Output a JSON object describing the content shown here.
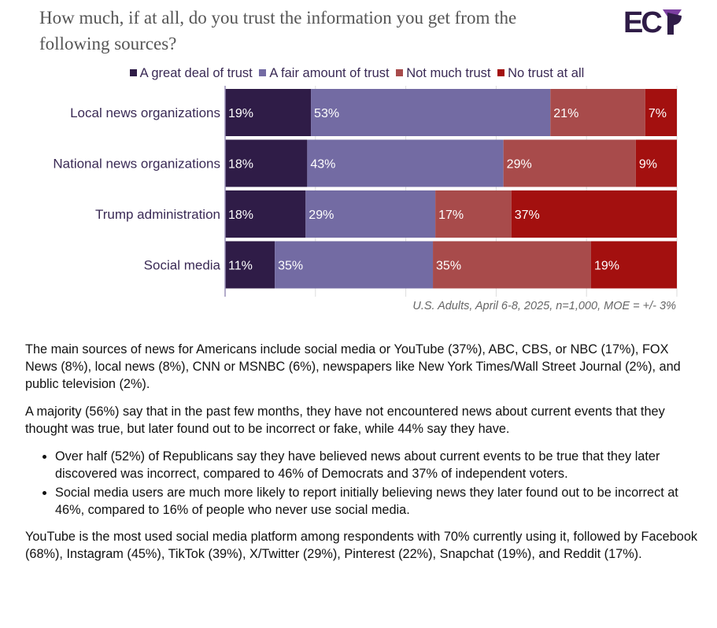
{
  "title": "How much, if at all, do you trust the information you get from the following sources?",
  "logo_text": "ECP",
  "source_note": "U.S. Adults, April 6-8, 2025, n=1,000, MOE = +/- 3%",
  "colors": {
    "great": "#2f1c47",
    "fair": "#736ba3",
    "notmuch": "#a84b4b",
    "none": "#a3100f"
  },
  "chart_data": {
    "type": "bar",
    "orientation": "horizontal-stacked",
    "title": "How much, if at all, do you trust the information you get from the following sources?",
    "legend": [
      "A great deal of trust",
      "A fair amount of trust",
      "Not much trust",
      "No trust at all"
    ],
    "legend_position": "top",
    "categories": [
      "Local news organizations",
      "National news organizations",
      "Trump administration",
      "Social media"
    ],
    "series": [
      {
        "name": "A great deal of trust",
        "values": [
          19,
          18,
          18,
          11
        ]
      },
      {
        "name": "A fair amount of trust",
        "values": [
          53,
          43,
          29,
          35
        ]
      },
      {
        "name": "Not much trust",
        "values": [
          21,
          29,
          17,
          35
        ]
      },
      {
        "name": "No trust at all",
        "values": [
          7,
          9,
          37,
          19
        ]
      }
    ],
    "xlim": [
      0,
      100
    ],
    "grid": true
  },
  "body": {
    "p1": "The main sources of news for Americans include social media or YouTube (37%), ABC, CBS, or NBC (17%), FOX News (8%), local news (8%), CNN or MSNBC (6%), newspapers like New York Times/Wall Street Journal (2%), and public television (2%).",
    "p2": "A majority (56%) say that in the past few months, they have not encountered news about current events that they thought was true, but later found out to be incorrect or fake, while 44% say they have.",
    "bullets": [
      "Over half (52%) of Republicans say they have believed news about current events to be true that they later discovered was incorrect, compared to 46% of Democrats and 37% of independent voters.",
      "Social media users are much more likely to report initially believing news they later found out to be incorrect at 46%, compared to 16% of people who never use social media."
    ],
    "p3": "YouTube is the most used social media platform among respondents with 70% currently using it, followed by Facebook (68%), Instagram (45%), TikTok (39%), X/Twitter (29%), Pinterest (22%), Snapchat (19%), and Reddit (17%)."
  }
}
